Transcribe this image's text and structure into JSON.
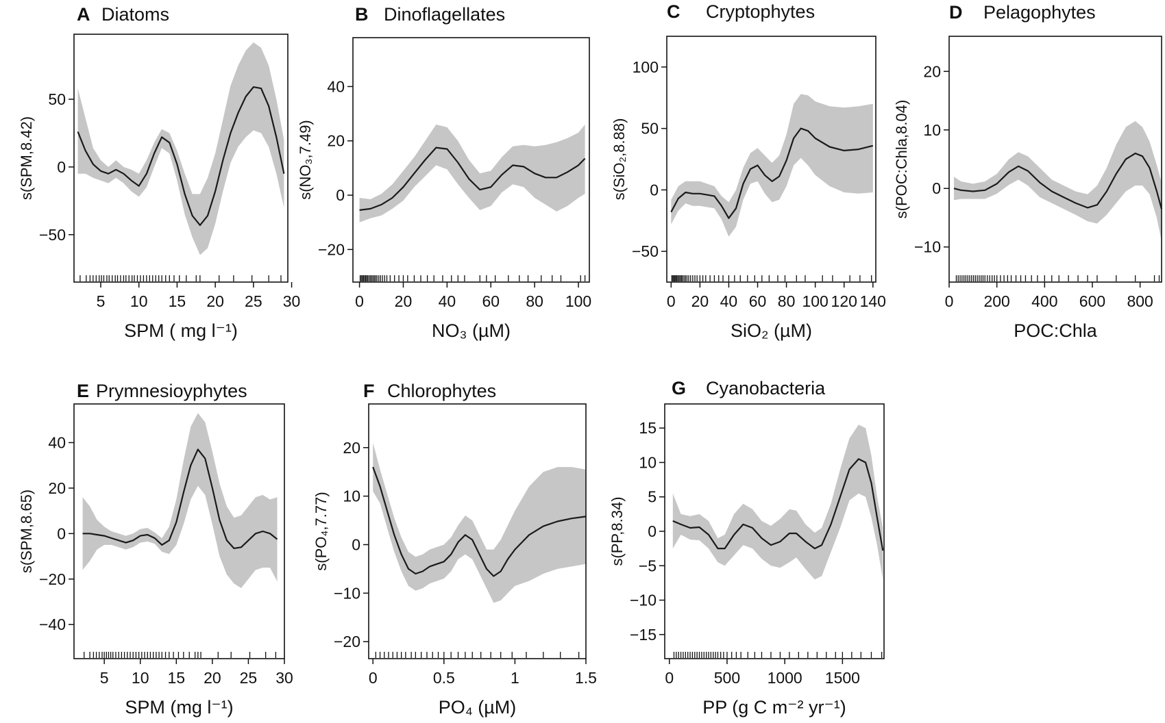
{
  "chart_data": [
    {
      "type": "line",
      "letter": "A",
      "title": "Diatoms",
      "xlabel": "SPM ( mg l⁻¹)",
      "ylabel": "s(SPM,8.42)",
      "xlim": [
        1.5,
        29.5
      ],
      "ylim": [
        -85,
        98
      ],
      "xticks": [
        5,
        10,
        15,
        20,
        25,
        30
      ],
      "yticks": [
        -50,
        0,
        50
      ],
      "x": [
        2,
        3,
        4,
        5,
        6,
        7,
        8,
        9,
        10,
        11,
        12,
        13,
        14,
        15,
        16,
        17,
        18,
        19,
        20,
        21,
        22,
        23,
        24,
        25,
        26,
        27,
        28,
        29
      ],
      "fit": [
        26,
        12,
        2,
        -3,
        -5,
        -2,
        -5,
        -10,
        -14,
        -5,
        10,
        22,
        18,
        2,
        -20,
        -36,
        -43,
        -36,
        -18,
        5,
        25,
        40,
        52,
        59,
        58,
        45,
        22,
        -5
      ],
      "upper": [
        58,
        36,
        14,
        5,
        0,
        5,
        0,
        -2,
        -5,
        5,
        18,
        28,
        25,
        12,
        -5,
        -20,
        -20,
        -8,
        10,
        35,
        60,
        75,
        86,
        92,
        88,
        75,
        50,
        20
      ],
      "lower": [
        -5,
        -5,
        -8,
        -10,
        -12,
        -8,
        -12,
        -18,
        -22,
        -15,
        0,
        14,
        10,
        -10,
        -35,
        -52,
        -65,
        -60,
        -42,
        -18,
        3,
        15,
        22,
        27,
        25,
        15,
        -5,
        -30
      ],
      "rug": [
        2.3,
        3.1,
        3.6,
        4.0,
        4.4,
        4.8,
        5.1,
        5.4,
        5.8,
        6.1,
        6.5,
        6.9,
        7.2,
        7.6,
        8.0,
        8.3,
        8.7,
        9.1,
        9.4,
        9.8,
        10.2,
        10.6,
        11.0,
        11.4,
        11.8,
        12.2,
        12.6,
        13.0,
        13.5,
        14.0,
        14.6,
        15.3,
        16.2,
        17.5,
        18.0,
        20.5,
        22.4,
        24.8,
        27.0,
        28.6
      ]
    },
    {
      "type": "line",
      "letter": "B",
      "title": "Dinoflagellates",
      "xlabel": "NO₃ (µM)",
      "ylabel": "s(NO₃,7.49)",
      "xlim": [
        -3,
        105
      ],
      "ylim": [
        -32,
        58
      ],
      "xticks": [
        0,
        20,
        40,
        60,
        80,
        100
      ],
      "yticks": [
        -20,
        0,
        20,
        40
      ],
      "x": [
        0,
        5,
        10,
        15,
        20,
        25,
        30,
        35,
        40,
        45,
        50,
        55,
        60,
        65,
        70,
        75,
        80,
        85,
        90,
        95,
        100,
        103
      ],
      "fit": [
        -5.5,
        -5,
        -3.5,
        -1,
        3,
        8,
        13,
        17.5,
        17,
        12,
        6,
        2,
        3,
        7.5,
        11,
        10.5,
        8,
        6.5,
        6.5,
        8.5,
        11,
        13.5
      ],
      "upper": [
        -1,
        -1.5,
        0.5,
        4,
        9,
        14,
        20,
        26,
        25,
        20,
        13,
        8,
        9,
        14,
        18,
        18.5,
        18,
        18.5,
        19.5,
        21,
        23,
        26
      ],
      "lower": [
        -10,
        -8.5,
        -7.5,
        -5,
        -2,
        3,
        7,
        11,
        9.5,
        4,
        -1,
        -5.5,
        -4,
        1,
        4,
        3,
        -1,
        -3.5,
        -6,
        -4,
        -1,
        0.5
      ],
      "rug": [
        0.3,
        0.8,
        1.3,
        1.8,
        2.3,
        2.8,
        3.3,
        3.8,
        4.4,
        5.0,
        5.6,
        6.2,
        6.8,
        7.4,
        8.0,
        8.8,
        9.6,
        10.5,
        11.5,
        12.5,
        14,
        16,
        18,
        20,
        22,
        25,
        28,
        31,
        34,
        38,
        42,
        45,
        48,
        55,
        58,
        62,
        68,
        73,
        77,
        83,
        88,
        92,
        101,
        103
      ]
    },
    {
      "type": "line",
      "letter": "C",
      "title": "Cryptophytes",
      "xlabel": "SiO₂ (µM)",
      "ylabel": "s(SiO₂,8.88)",
      "xlim": [
        -3,
        142
      ],
      "ylim": [
        -75,
        125
      ],
      "xticks": [
        0,
        20,
        40,
        60,
        80,
        100,
        120,
        140
      ],
      "yticks": [
        -50,
        0,
        50,
        100
      ],
      "x": [
        0,
        5,
        10,
        15,
        20,
        25,
        30,
        35,
        40,
        45,
        50,
        55,
        60,
        65,
        70,
        75,
        80,
        85,
        90,
        95,
        100,
        110,
        120,
        130,
        140
      ],
      "fit": [
        -18,
        -7,
        -2,
        -3,
        -3,
        -4,
        -5,
        -13,
        -23,
        -15,
        5,
        17,
        20,
        12,
        7,
        11,
        24,
        42,
        50,
        48,
        42,
        35,
        32,
        33,
        36
      ],
      "upper": [
        -8,
        3,
        7,
        7,
        7,
        5,
        3,
        -5,
        -10,
        0,
        18,
        30,
        34,
        28,
        22,
        28,
        45,
        70,
        78,
        77,
        72,
        68,
        67,
        68,
        70
      ],
      "lower": [
        -28,
        -17,
        -11,
        -13,
        -13,
        -14,
        -15,
        -24,
        -38,
        -30,
        -8,
        5,
        7,
        -3,
        -10,
        -8,
        3,
        20,
        26,
        20,
        12,
        3,
        -2,
        -3,
        -2
      ],
      "rug": [
        0.5,
        1.2,
        1.9,
        2.6,
        3.3,
        4.0,
        4.8,
        5.6,
        6.4,
        7.2,
        8.0,
        9.0,
        10.0,
        11.0,
        12.2,
        13.5,
        15,
        16.5,
        18,
        20,
        22,
        24,
        27,
        30,
        33,
        36,
        40,
        44,
        48,
        53,
        58,
        63,
        68,
        74,
        79,
        87,
        93,
        105,
        112,
        124,
        131,
        139
      ]
    },
    {
      "type": "line",
      "letter": "D",
      "title": "Pelagophytes",
      "xlabel": "POC:Chla",
      "ylabel": "s(POC:Chla,8.04)",
      "xlim": [
        0,
        890
      ],
      "ylim": [
        -16,
        26
      ],
      "xticks": [
        0,
        200,
        400,
        600,
        800
      ],
      "yticks": [
        -10,
        0,
        10,
        20
      ],
      "x": [
        20,
        50,
        100,
        150,
        200,
        250,
        290,
        330,
        380,
        430,
        480,
        530,
        580,
        620,
        660,
        700,
        740,
        780,
        810,
        840,
        870,
        890
      ],
      "fit": [
        0,
        -0.3,
        -0.5,
        -0.3,
        0.8,
        2.8,
        3.8,
        3.0,
        1.0,
        -0.5,
        -1.5,
        -2.5,
        -3.3,
        -2.8,
        -0.5,
        2.5,
        5.0,
        6.0,
        5.5,
        3.5,
        -0.5,
        -3.5
      ],
      "upper": [
        2,
        1.2,
        0.8,
        1.2,
        2.5,
        5.0,
        6.2,
        5.5,
        3.5,
        1.5,
        0.5,
        -0.5,
        -1.0,
        0.5,
        3.5,
        7.5,
        10.5,
        11.5,
        10.5,
        8.0,
        4.0,
        1.0
      ],
      "lower": [
        -2,
        -1.8,
        -1.8,
        -1.8,
        -0.9,
        0.6,
        1.5,
        0.5,
        -1.5,
        -2.5,
        -3.5,
        -4.5,
        -5.6,
        -6.0,
        -4.5,
        -2.5,
        -0.5,
        0.5,
        0.5,
        -1.0,
        -5.0,
        -9.0
      ],
      "rug": [
        30,
        38,
        46,
        54,
        62,
        70,
        78,
        86,
        94,
        102,
        110,
        118,
        126,
        134,
        142,
        150,
        160,
        170,
        180,
        190,
        200,
        215,
        230,
        245,
        260,
        280,
        300,
        320,
        345,
        370,
        400,
        430,
        460,
        500,
        540,
        580,
        620,
        700,
        780,
        860,
        880
      ]
    },
    {
      "type": "line",
      "letter": "E",
      "title": "Prymnesioyphytes",
      "xlabel": "SPM (mg l⁻¹)",
      "ylabel": "s(SPM,8.65)",
      "xlim": [
        0.8,
        30
      ],
      "ylim": [
        -55,
        57
      ],
      "xticks": [
        5,
        10,
        15,
        20,
        25,
        30
      ],
      "yticks": [
        -40,
        -20,
        0,
        20,
        40
      ],
      "x": [
        2,
        3,
        4,
        5,
        6,
        7,
        8,
        9,
        10,
        11,
        12,
        13,
        14,
        15,
        16,
        17,
        18,
        19,
        20,
        21,
        22,
        23,
        24,
        25,
        26,
        27,
        28,
        29
      ],
      "fit": [
        0,
        0,
        -0.5,
        -1,
        -2,
        -3,
        -4,
        -3,
        -1,
        -0.5,
        -2,
        -5,
        -3,
        5,
        18,
        30,
        37,
        33,
        20,
        6,
        -3,
        -6.5,
        -6,
        -3,
        0,
        1,
        0,
        -2.5
      ],
      "upper": [
        16,
        12,
        6,
        3,
        1,
        0,
        -1,
        0,
        2,
        2.5,
        0.5,
        -2,
        3,
        15,
        32,
        47,
        53,
        49,
        36,
        22,
        12,
        7,
        8,
        12,
        16,
        17,
        15,
        16
      ],
      "lower": [
        -16,
        -12,
        -7,
        -5,
        -5,
        -6,
        -7,
        -6,
        -4,
        -3.5,
        -4.5,
        -8,
        -9,
        -5,
        4,
        15,
        21,
        17,
        4,
        -10,
        -18,
        -22,
        -24,
        -20,
        -16,
        -15,
        -15,
        -21
      ],
      "rug": [
        2.2,
        3.0,
        3.5,
        3.9,
        4.3,
        4.7,
        5.0,
        5.3,
        5.6,
        5.9,
        6.2,
        6.6,
        7.0,
        7.4,
        7.8,
        8.2,
        8.6,
        9.0,
        9.4,
        9.8,
        10.2,
        10.6,
        11.0,
        11.4,
        11.8,
        12.2,
        12.6,
        13.0,
        13.5,
        14.0,
        14.6,
        15.3,
        16.0,
        16.8,
        17.6,
        18.0,
        18.4,
        20.8,
        22.6,
        25.2,
        27.4,
        28.8
      ]
    },
    {
      "type": "line",
      "letter": "F",
      "title": "Chlorophytes",
      "xlabel": "PO₄ (µM)",
      "ylabel": "s(PO₄,7.77)",
      "xlim": [
        -0.03,
        1.5
      ],
      "ylim": [
        -23.5,
        29
      ],
      "xticks": [
        0.0,
        0.5,
        1.0,
        1.5
      ],
      "yticks": [
        -20,
        -10,
        0,
        10,
        20
      ],
      "x": [
        0,
        0.05,
        0.1,
        0.15,
        0.2,
        0.25,
        0.3,
        0.35,
        0.4,
        0.45,
        0.5,
        0.55,
        0.6,
        0.65,
        0.7,
        0.75,
        0.8,
        0.85,
        0.9,
        0.95,
        1.0,
        1.1,
        1.2,
        1.3,
        1.4,
        1.5
      ],
      "fit": [
        16,
        12,
        7,
        2,
        -2,
        -5,
        -6,
        -5.5,
        -4.5,
        -4,
        -3.5,
        -2,
        0.5,
        2,
        1,
        -2,
        -5,
        -6.5,
        -5.5,
        -3,
        -1,
        2,
        3.8,
        4.8,
        5.4,
        5.8
      ],
      "upper": [
        21,
        15.5,
        10.5,
        5.5,
        1.5,
        -1.5,
        -2.5,
        -2,
        -1,
        -0.5,
        0,
        1.5,
        4,
        6,
        5,
        2,
        -1,
        -1,
        1,
        4,
        7,
        12,
        15,
        16,
        16,
        15.5
      ],
      "lower": [
        11,
        8.5,
        3.5,
        -1.5,
        -5.5,
        -8.5,
        -9.5,
        -9,
        -8,
        -7.5,
        -7,
        -5.5,
        -3,
        -2,
        -3,
        -6,
        -9,
        -12,
        -11.5,
        -10,
        -8.5,
        -7.5,
        -6,
        -5,
        -4.5,
        -4
      ],
      "rug": [
        0.02,
        0.05,
        0.08,
        0.11,
        0.14,
        0.17,
        0.2,
        0.23,
        0.27,
        0.3,
        0.34,
        0.38,
        0.42,
        0.46,
        0.5,
        0.55,
        0.6,
        0.65,
        0.7,
        0.76,
        0.83,
        0.9,
        0.98,
        1.08,
        1.2,
        1.32,
        1.45
      ]
    },
    {
      "type": "line",
      "letter": "G",
      "title": "Cyanobacteria",
      "xlabel": "PP (g C m⁻² yr⁻¹)",
      "ylabel": "s(PP,8.34)",
      "xlim": [
        -40,
        1860
      ],
      "ylim": [
        -18.5,
        18.5
      ],
      "xticks": [
        0,
        500,
        1000,
        1500
      ],
      "yticks": [
        -15,
        -10,
        -5,
        0,
        5,
        10,
        15
      ],
      "x": [
        30,
        100,
        180,
        260,
        340,
        420,
        480,
        560,
        640,
        720,
        800,
        880,
        960,
        1040,
        1100,
        1180,
        1260,
        1320,
        1400,
        1480,
        1560,
        1640,
        1700,
        1750,
        1800,
        1850
      ],
      "fit": [
        1.5,
        1.0,
        0.5,
        0.6,
        -0.5,
        -2.5,
        -2.5,
        -0.5,
        1.0,
        0.5,
        -1.0,
        -2.0,
        -1.5,
        -0.3,
        -0.3,
        -1.5,
        -2.5,
        -2.0,
        1.0,
        5.0,
        9.0,
        10.5,
        10.0,
        7.0,
        2.0,
        -2.8
      ],
      "upper": [
        5.5,
        2.5,
        2.2,
        2.5,
        1.5,
        -1.0,
        -0.5,
        2.5,
        4.0,
        3.2,
        1.5,
        0.8,
        1.8,
        3.2,
        3.0,
        1.0,
        -0.2,
        0.5,
        4.0,
        9.0,
        13.5,
        15.5,
        15.0,
        11.0,
        5.0,
        0.5
      ],
      "lower": [
        -2.5,
        -0.5,
        -1.2,
        -1.3,
        -2.5,
        -4.5,
        -5.0,
        -3.5,
        -2.0,
        -2.5,
        -4.0,
        -5.0,
        -5.3,
        -4.5,
        -3.8,
        -5.5,
        -7.0,
        -6.5,
        -3.0,
        0.5,
        4.5,
        5.5,
        5.0,
        2.0,
        -2.0,
        -7.0
      ],
      "rug": [
        40,
        60,
        80,
        100,
        120,
        140,
        160,
        180,
        200,
        220,
        240,
        260,
        280,
        300,
        320,
        340,
        360,
        380,
        400,
        420,
        445,
        470,
        500,
        540,
        580,
        620,
        680,
        740,
        800,
        880,
        960,
        1040,
        1120,
        1200,
        1280,
        1360,
        1440,
        1500,
        1580,
        1660,
        1750,
        1840
      ]
    }
  ]
}
